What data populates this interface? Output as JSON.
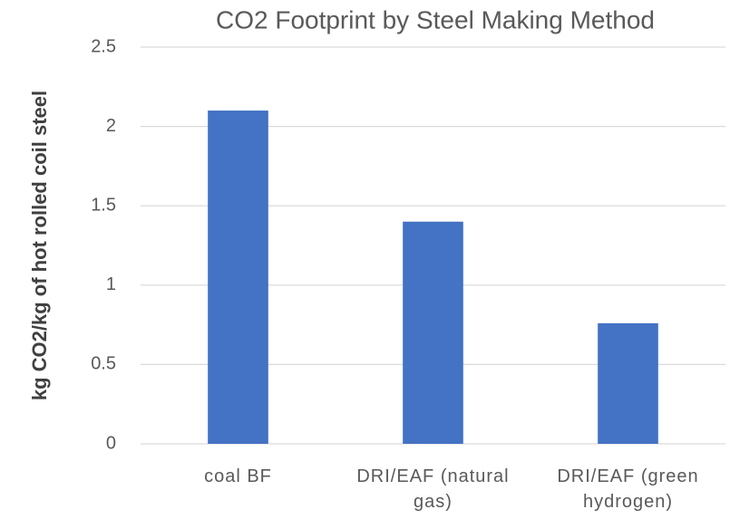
{
  "chart_data": {
    "type": "bar",
    "title": "CO2 Footprint by Steel Making Method",
    "y_label": "kg CO2/kg of hot rolled coil steel",
    "categories": [
      "coal BF",
      "DRI/EAF (natural gas)",
      "DRI/EAF (green hydrogen)"
    ],
    "values": [
      2.1,
      1.4,
      0.76
    ],
    "color": "#4472c4",
    "ylim": [
      0,
      2.5
    ],
    "yticks": [
      0,
      0.5,
      1,
      1.5,
      2,
      2.5
    ],
    "grid": true
  }
}
